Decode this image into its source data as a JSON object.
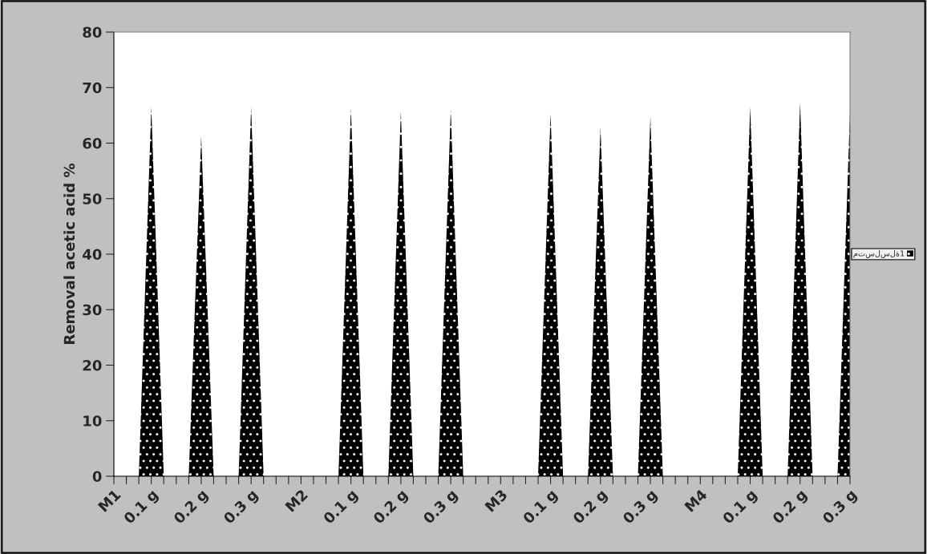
{
  "chart_data": {
    "type": "area",
    "ylabel": "Removal acetic acid %",
    "categories": [
      "M1",
      null,
      null,
      "0.1 g",
      null,
      null,
      null,
      "0.2 g",
      null,
      null,
      null,
      "0.3 g",
      null,
      null,
      null,
      "M2",
      null,
      null,
      null,
      "0.1 g",
      null,
      null,
      null,
      "0.2 g",
      null,
      null,
      null,
      "0.3 g",
      null,
      null,
      null,
      "M3",
      null,
      null,
      null,
      "0.1 g",
      null,
      null,
      null,
      "0.2 g",
      null,
      null,
      null,
      "0.3 g",
      null,
      null,
      null,
      "M4",
      null,
      null,
      null,
      "0.1 g",
      null,
      null,
      null,
      "0.2 g",
      null,
      null,
      null,
      "0.3 g"
    ],
    "series": [
      {
        "name": "متسلسلة1",
        "color": "#000000",
        "values": [
          0,
          0,
          0,
          66.5,
          0,
          0,
          0,
          61.2,
          0,
          0,
          0,
          66.5,
          0,
          0,
          0,
          0,
          0,
          0,
          0,
          66.2,
          0,
          0,
          0,
          65.7,
          0,
          0,
          0,
          66.1,
          0,
          0,
          0,
          0,
          0,
          0,
          0,
          65.3,
          0,
          0,
          0,
          62.8,
          0,
          0,
          0,
          64.7,
          0,
          0,
          0,
          0,
          0,
          0,
          0,
          66.5,
          0,
          0,
          0,
          67.3,
          0,
          0,
          0,
          65.7
        ]
      }
    ],
    "ylim": [
      0,
      80
    ],
    "yticks": [
      0,
      10,
      20,
      30,
      40,
      50,
      60,
      70,
      80
    ],
    "grid": false,
    "legend": "right"
  }
}
